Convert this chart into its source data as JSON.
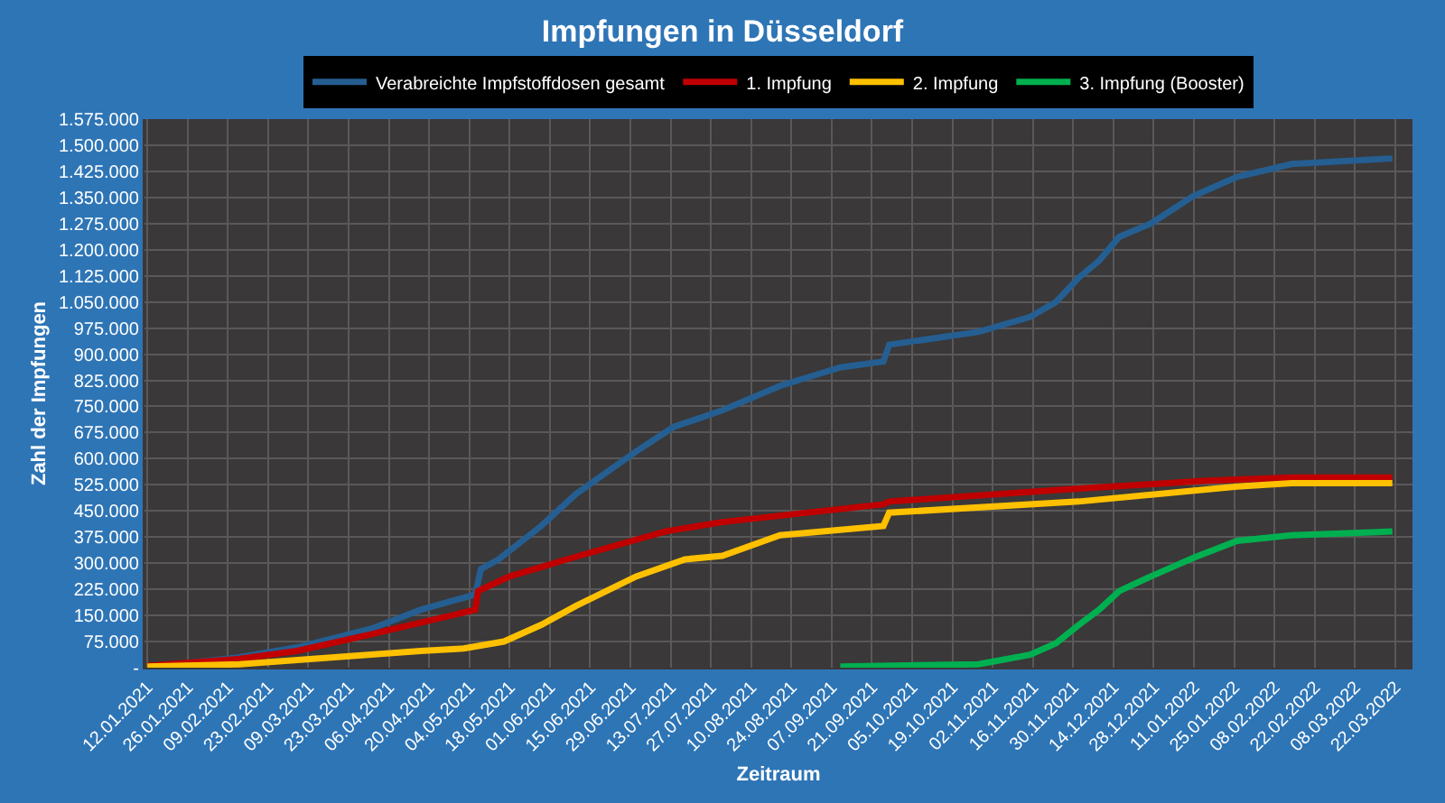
{
  "chart_data": {
    "type": "line",
    "title": "Impfungen in Düsseldorf",
    "xlabel": "Zeitraum",
    "ylabel": "Zahl der Impfungen",
    "legend": "top",
    "grid": true,
    "marker": "none",
    "line_style": "solid",
    "xlim": [
      "2021-01-11",
      "2022-03-28"
    ],
    "xticks": [
      {
        "value": "2021-01-12",
        "label": "12.01.2021"
      },
      {
        "value": "2021-01-26",
        "label": "26.01.2021"
      },
      {
        "value": "2021-02-09",
        "label": "09.02.2021"
      },
      {
        "value": "2021-02-23",
        "label": "23.02.2021"
      },
      {
        "value": "2021-03-09",
        "label": "09.03.2021"
      },
      {
        "value": "2021-03-23",
        "label": "23.03.2021"
      },
      {
        "value": "2021-04-06",
        "label": "06.04.2021"
      },
      {
        "value": "2021-04-20",
        "label": "20.04.2021"
      },
      {
        "value": "2021-05-04",
        "label": "04.05.2021"
      },
      {
        "value": "2021-05-18",
        "label": "18.05.2021"
      },
      {
        "value": "2021-06-01",
        "label": "01.06.2021"
      },
      {
        "value": "2021-06-15",
        "label": "15.06.2021"
      },
      {
        "value": "2021-06-29",
        "label": "29.06.2021"
      },
      {
        "value": "2021-07-13",
        "label": "13.07.2021"
      },
      {
        "value": "2021-07-27",
        "label": "27.07.2021"
      },
      {
        "value": "2021-08-10",
        "label": "10.08.2021"
      },
      {
        "value": "2021-08-24",
        "label": "24.08.2021"
      },
      {
        "value": "2021-09-07",
        "label": "07.09.2021"
      },
      {
        "value": "2021-09-21",
        "label": "21.09.2021"
      },
      {
        "value": "2021-10-05",
        "label": "05.10.2021"
      },
      {
        "value": "2021-10-19",
        "label": "19.10.2021"
      },
      {
        "value": "2021-11-02",
        "label": "02.11.2021"
      },
      {
        "value": "2021-11-16",
        "label": "16.11.2021"
      },
      {
        "value": "2021-11-30",
        "label": "30.11.2021"
      },
      {
        "value": "2021-12-14",
        "label": "14.12.2021"
      },
      {
        "value": "2021-12-28",
        "label": "28.12.2021"
      },
      {
        "value": "2022-01-11",
        "label": "11.01.2022"
      },
      {
        "value": "2022-01-25",
        "label": "25.01.2022"
      },
      {
        "value": "2022-02-08",
        "label": "08.02.2022"
      },
      {
        "value": "2022-02-22",
        "label": "22.02.2022"
      },
      {
        "value": "2022-03-08",
        "label": "08.03.2022"
      },
      {
        "value": "2022-03-22",
        "label": "22.03.2022"
      }
    ],
    "ylim": [
      0,
      1575000
    ],
    "yticks": [
      {
        "value": 0,
        "label": "-"
      },
      {
        "value": 75000,
        "label": "75.000"
      },
      {
        "value": 150000,
        "label": "150.000"
      },
      {
        "value": 225000,
        "label": "225.000"
      },
      {
        "value": 300000,
        "label": "300.000"
      },
      {
        "value": 375000,
        "label": "375.000"
      },
      {
        "value": 450000,
        "label": "450.000"
      },
      {
        "value": 525000,
        "label": "525.000"
      },
      {
        "value": 600000,
        "label": "600.000"
      },
      {
        "value": 675000,
        "label": "675.000"
      },
      {
        "value": 750000,
        "label": "750.000"
      },
      {
        "value": 825000,
        "label": "825.000"
      },
      {
        "value": 900000,
        "label": "900.000"
      },
      {
        "value": 975000,
        "label": "975.000"
      },
      {
        "value": 1050000,
        "label": "1.050.000"
      },
      {
        "value": 1125000,
        "label": "1.125.000"
      },
      {
        "value": 1200000,
        "label": "1.200.000"
      },
      {
        "value": 1275000,
        "label": "1.275.000"
      },
      {
        "value": 1350000,
        "label": "1.350.000"
      },
      {
        "value": 1425000,
        "label": "1.425.000"
      },
      {
        "value": 1500000,
        "label": "1.500.000"
      },
      {
        "value": 1575000,
        "label": "1.575.000"
      }
    ],
    "series": [
      {
        "name": "Verabreichte Impfstoffdosen gesamt",
        "color": "#255e91",
        "x": [
          "2021-01-12",
          "2021-02-13",
          "2021-03-06",
          "2021-03-31",
          "2021-04-17",
          "2021-05-06",
          "2021-05-08",
          "2021-05-14",
          "2021-05-29",
          "2021-06-10",
          "2021-07-01",
          "2021-07-14",
          "2021-07-31",
          "2021-08-20",
          "2021-09-10",
          "2021-09-25",
          "2021-09-27",
          "2021-10-28",
          "2021-11-15",
          "2021-11-24",
          "2021-12-02",
          "2021-12-09",
          "2021-12-16",
          "2021-12-27",
          "2022-01-11",
          "2022-01-26",
          "2022-02-14",
          "2022-03-21"
        ],
        "values": [
          0,
          30000,
          60000,
          112000,
          166000,
          210000,
          283000,
          310000,
          407000,
          498000,
          621000,
          691000,
          739000,
          809000,
          862000,
          879000,
          927000,
          964000,
          1007000,
          1050000,
          1120000,
          1168000,
          1237000,
          1275000,
          1355000,
          1409000,
          1446000,
          1462000
        ]
      },
      {
        "name": "1. Impfung",
        "color": "#c00000",
        "x": [
          "2021-01-12",
          "2021-02-13",
          "2021-03-05",
          "2021-03-31",
          "2021-04-17",
          "2021-05-06",
          "2021-05-07",
          "2021-05-18",
          "2021-06-09",
          "2021-07-11",
          "2021-07-31",
          "2021-09-25",
          "2021-09-27",
          "2021-12-02",
          "2022-01-14",
          "2022-02-14",
          "2022-03-21"
        ],
        "values": [
          5000,
          25000,
          48000,
          96000,
          129000,
          166000,
          220000,
          262000,
          316000,
          391000,
          418000,
          469000,
          477000,
          514000,
          536000,
          546000,
          546000
        ]
      },
      {
        "name": "2. Impfung",
        "color": "#ffc000",
        "x": [
          "2021-01-12",
          "2021-02-13",
          "2021-03-18",
          "2021-04-17",
          "2021-05-02",
          "2021-05-16",
          "2021-05-29",
          "2021-06-10",
          "2021-07-01",
          "2021-07-18",
          "2021-07-31",
          "2021-08-20",
          "2021-09-25",
          "2021-09-27",
          "2021-12-02",
          "2022-01-26",
          "2022-02-14",
          "2022-03-21"
        ],
        "values": [
          3000,
          10000,
          30000,
          48000,
          55000,
          75000,
          123000,
          177000,
          262000,
          311000,
          321000,
          380000,
          407000,
          445000,
          477000,
          520000,
          530000,
          530000
        ]
      },
      {
        "name": "3. Impfung (Booster)",
        "color": "#00b050",
        "x": [
          "2021-09-10",
          "2021-10-28",
          "2021-11-15",
          "2021-11-24",
          "2021-12-02",
          "2021-12-09",
          "2021-12-16",
          "2021-12-27",
          "2022-01-11",
          "2022-01-26",
          "2022-02-14",
          "2022-03-21"
        ],
        "values": [
          3000,
          10000,
          37000,
          70000,
          123000,
          166000,
          220000,
          262000,
          316000,
          364000,
          380000,
          391000
        ]
      }
    ]
  }
}
